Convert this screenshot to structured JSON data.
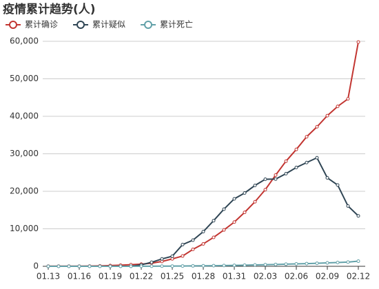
{
  "chart_data": {
    "type": "line",
    "title": "疫情累计趋势(人)",
    "categories": [
      "01.13",
      null,
      null,
      "01.16",
      null,
      null,
      "01.19",
      null,
      null,
      "01.22",
      null,
      null,
      "01.25",
      null,
      null,
      "01.28",
      null,
      null,
      "01.31",
      null,
      null,
      "02.03",
      null,
      null,
      "02.06",
      null,
      null,
      "02.09",
      null,
      null,
      "02.12"
    ],
    "series": [
      {
        "name": "累计确诊",
        "color": "#c23531",
        "values": [
          41,
          41,
          41,
          45,
          62,
          121,
          198,
          291,
          440,
          571,
          830,
          1287,
          1975,
          2744,
          4515,
          5974,
          7711,
          9692,
          11791,
          14380,
          17205,
          20438,
          24324,
          28018,
          31161,
          34546,
          37198,
          40171,
          42638,
          44653,
          59804
        ]
      },
      {
        "name": "累计疑似",
        "color": "#2f4554",
        "values": [
          0,
          0,
          0,
          0,
          0,
          0,
          0,
          0,
          0,
          393,
          1072,
          1965,
          2684,
          5794,
          6973,
          9239,
          12167,
          15238,
          17988,
          19544,
          21558,
          23214,
          23260,
          24702,
          26359,
          27657,
          28942,
          23589,
          21675,
          16067,
          13435
        ]
      },
      {
        "name": "累计死亡",
        "color": "#61a0a8",
        "values": [
          1,
          1,
          2,
          2,
          2,
          3,
          3,
          6,
          9,
          17,
          25,
          41,
          56,
          80,
          106,
          132,
          170,
          213,
          259,
          304,
          361,
          425,
          490,
          563,
          636,
          722,
          811,
          908,
          1016,
          1113,
          1367
        ]
      }
    ],
    "ylim": [
      0,
      60000
    ],
    "yticks": [
      0,
      {
        "value": 10000,
        "label": "10,000"
      },
      {
        "value": 20000,
        "label": "20,000"
      },
      {
        "value": 30000,
        "label": "30,000"
      },
      {
        "value": 40000,
        "label": "40,000"
      },
      {
        "value": 50000,
        "label": "50,000"
      },
      {
        "value": 60000,
        "label": "60,000"
      }
    ],
    "grid": true
  }
}
